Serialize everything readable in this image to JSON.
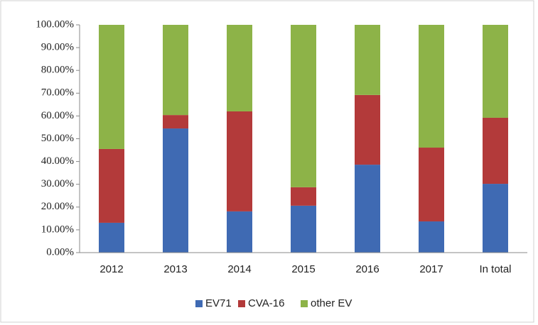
{
  "chart_data": {
    "type": "stacked_bar",
    "categories": [
      "2012",
      "2013",
      "2014",
      "2015",
      "2016",
      "2017",
      "In total"
    ],
    "series": [
      {
        "name": "EV71",
        "color": "#3f6ab3",
        "values": [
          13.1,
          54.5,
          18.1,
          20.6,
          38.6,
          13.7,
          30.2
        ]
      },
      {
        "name": "CVA-16",
        "color": "#b33a3a",
        "values": [
          32.4,
          5.9,
          43.9,
          8.1,
          30.6,
          32.4,
          29.0
        ]
      },
      {
        "name": "other EV",
        "color": "#8db348",
        "values": [
          54.5,
          39.6,
          38.0,
          71.3,
          30.8,
          53.9,
          40.8
        ]
      }
    ],
    "ylim": [
      0,
      100
    ],
    "yticks": [
      {
        "value": 0,
        "label": "0.00%"
      },
      {
        "value": 10,
        "label": "10.00%"
      },
      {
        "value": 20,
        "label": "20.00%"
      },
      {
        "value": 30,
        "label": "30.00%"
      },
      {
        "value": 40,
        "label": "40.00%"
      },
      {
        "value": 50,
        "label": "50.00%"
      },
      {
        "value": 60,
        "label": "60.00%"
      },
      {
        "value": 70,
        "label": "70.00%"
      },
      {
        "value": 80,
        "label": "80.00%"
      },
      {
        "value": 90,
        "label": "90.00%"
      },
      {
        "value": 100,
        "label": "100.00%"
      }
    ],
    "legend": "bottom"
  }
}
